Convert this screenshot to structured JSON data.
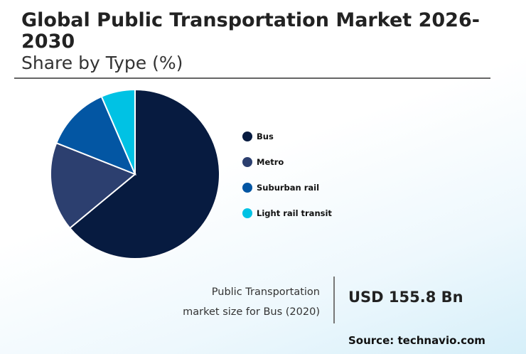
{
  "chart_data": {
    "type": "pie",
    "title": "Global Public Transportation Market 2026-2030",
    "subtitle": "Share by Type (%)",
    "categories": [
      "Bus",
      "Metro",
      "Suburban rail",
      "Light rail transit"
    ],
    "values": [
      64,
      17,
      12.5,
      6.5
    ],
    "colors": [
      "#071b40",
      "#2c3f6f",
      "#0356a3",
      "#00c2e4"
    ],
    "start_angle": "12 o'clock, clockwise",
    "legend_placement": "right"
  },
  "stat": {
    "label_line1": "Public Transportation",
    "label_line2": "market size for Bus (2020)",
    "value": "USD 155.8 Bn"
  },
  "source": "Source: technavio.com"
}
